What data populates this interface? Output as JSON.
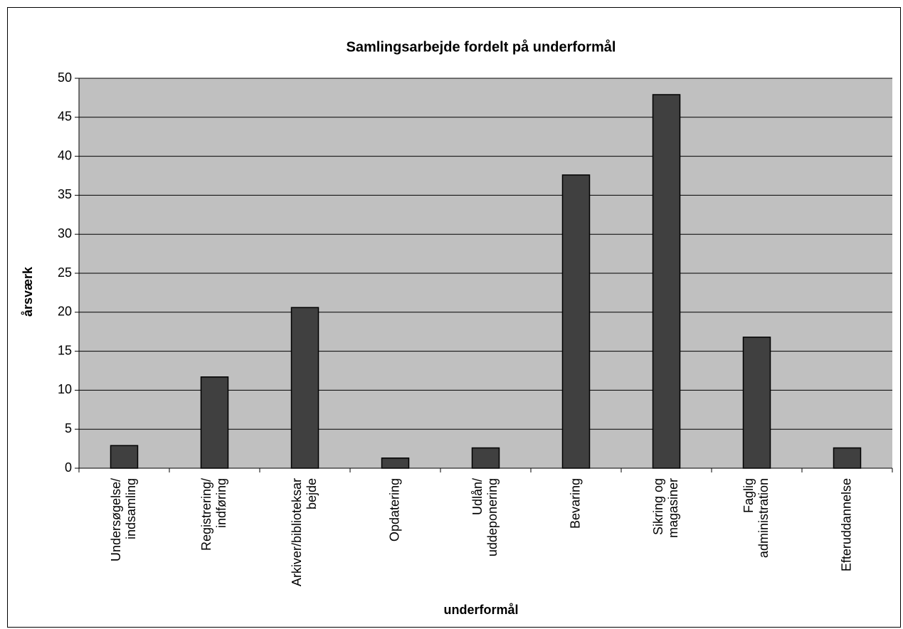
{
  "chart_data": {
    "type": "bar",
    "title": "Samlingsarbejde fordelt på underformål",
    "x_label": "underformål",
    "y_label": "årsværk",
    "categories": [
      "Undersøgelse/\nindsamling",
      "Registrering/\nindføring",
      "Arkiver/biblioteksar\nbejde",
      "Opdatering",
      "Udlån/\nuddeponering",
      "Bevaring",
      "Sikring og\nmagasiner",
      "Faglig\nadministration",
      "Efteruddannelse"
    ],
    "values": [
      2.9,
      11.7,
      20.6,
      1.3,
      2.6,
      37.6,
      47.9,
      16.8,
      2.6
    ],
    "color": "#404040",
    "background": "#c0c0c0",
    "ylim": [
      0,
      50
    ],
    "yticks": [
      0,
      5,
      10,
      15,
      20,
      25,
      30,
      35,
      40,
      45,
      50
    ],
    "grid": true
  }
}
